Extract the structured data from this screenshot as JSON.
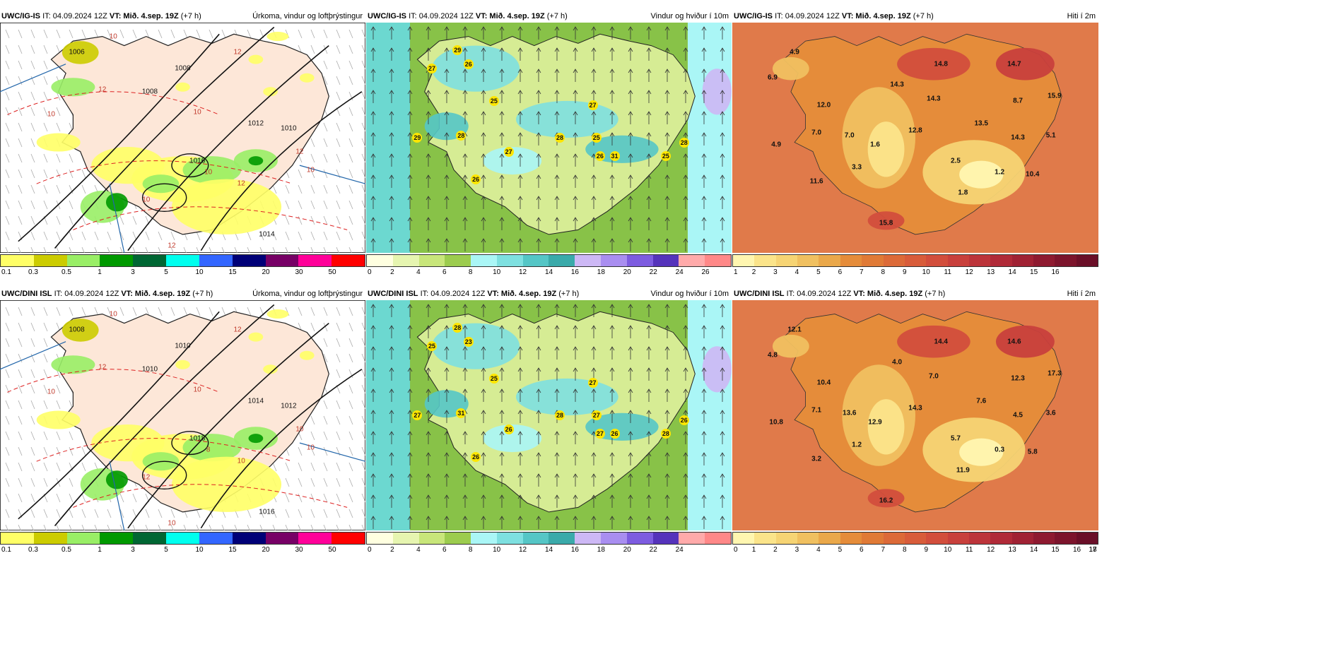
{
  "rows": [
    {
      "model": "UWC/IG-IS",
      "it": "IT: 04.09.2024 12Z",
      "vt_label": "VT:",
      "vt": "Mið. 4.sep. 19Z",
      "lead": "(+7 h)",
      "precip_title": "Úrkoma, vindur og loftþrýstingur",
      "wind_title": "Vindur og hviður í 10m",
      "temp_title": "Hiti í 2m",
      "wind_ticks": [
        "0",
        "2",
        "4",
        "6",
        "8",
        "10",
        "12",
        "14",
        "16",
        "18",
        "20",
        "22",
        "24",
        "26"
      ],
      "temp_ticks": [
        "1",
        "2",
        "3",
        "4",
        "5",
        "6",
        "7",
        "8",
        "9",
        "10",
        "11",
        "12",
        "13",
        "14",
        "15",
        "16"
      ],
      "isobars": [
        "1006",
        "1008",
        "1010",
        "1012",
        "1014",
        "1016",
        "1008"
      ],
      "isotherms": [
        "10",
        "10",
        "12",
        "10",
        "12",
        "10",
        "12",
        "10",
        "12",
        "12",
        "10"
      ],
      "wind_labels": [
        "29",
        "27",
        "26",
        "25",
        "27",
        "29",
        "28",
        "28",
        "25",
        "27",
        "26",
        "31",
        "25",
        "28",
        "26"
      ],
      "temp_labels": [
        "4.9",
        "6.9",
        "12.0",
        "7.0",
        "14.3",
        "14.8",
        "14.3",
        "14.7",
        "15.9",
        "8.7",
        "13.5",
        "12.8",
        "7.0",
        "1.6",
        "4.9",
        "3.3",
        "14.3",
        "5.1",
        "2.5",
        "1.2",
        "10.4",
        "11.6",
        "1.8",
        "15.8"
      ]
    },
    {
      "model": "UWC/DINI ISL",
      "it": "IT: 04.09.2024 12Z",
      "vt_label": "VT:",
      "vt": "Mið. 4.sep. 19Z",
      "lead": "(+7 h)",
      "precip_title": "Úrkoma, vindur og loftþrýstingur",
      "wind_title": "Vindur og hviður í 10m",
      "temp_title": "Hiti í 2m",
      "wind_ticks": [
        "0",
        "2",
        "4",
        "6",
        "8",
        "10",
        "12",
        "14",
        "16",
        "18",
        "20",
        "22",
        "24"
      ],
      "temp_ticks": [
        "0",
        "1",
        "2",
        "3",
        "4",
        "5",
        "6",
        "7",
        "8",
        "9",
        "10",
        "11",
        "12",
        "13",
        "14",
        "15",
        "16",
        "17",
        "18"
      ],
      "isobars": [
        "1008",
        "1010",
        "1012",
        "1014",
        "1016",
        "1018",
        "1010"
      ],
      "isotherms": [
        "10",
        "10",
        "12",
        "10",
        "10",
        "8",
        "10",
        "12",
        "10",
        "12",
        "10"
      ],
      "wind_labels": [
        "28",
        "25",
        "23",
        "25",
        "27",
        "27",
        "31",
        "28",
        "27",
        "26",
        "27",
        "26",
        "28",
        "26",
        "26"
      ],
      "temp_labels": [
        "12.1",
        "4.8",
        "10.4",
        "13.6",
        "4.0",
        "14.4",
        "7.0",
        "14.6",
        "17.3",
        "12.3",
        "7.6",
        "14.3",
        "7.1",
        "12.9",
        "10.8",
        "1.2",
        "4.5",
        "3.6",
        "5.7",
        "0.3",
        "5.8",
        "3.2",
        "11.9",
        "16.2"
      ]
    }
  ],
  "precip_ticks": [
    "0.1",
    "0.3",
    "0.5",
    "1",
    "3",
    "5",
    "10",
    "15",
    "20",
    "30",
    "50"
  ],
  "colors": {
    "precip": [
      "#ffff66",
      "#cccc00",
      "#99ee66",
      "#009900",
      "#006633",
      "#00ffee",
      "#3366ff",
      "#000077",
      "#770066",
      "#ff0099",
      "#ff0000"
    ],
    "wind": [
      "#ffffe0",
      "#e6f5b0",
      "#c8e67a",
      "#9ccc4e",
      "#aaf6f6",
      "#7ee0e0",
      "#55c6c6",
      "#3aaaaa",
      "#cdb8f5",
      "#a98ef0",
      "#7d5ce0",
      "#5533bb",
      "#ffaaaa",
      "#ff8888"
    ],
    "temp": [
      "#fff6b0",
      "#fbe48a",
      "#f6d474",
      "#f0c060",
      "#eaa84a",
      "#e58c3a",
      "#e07a36",
      "#dc6a38",
      "#d85c3a",
      "#d24e3c",
      "#c8403c",
      "#bc343a",
      "#b02a38",
      "#a02234",
      "#8e1a30",
      "#7c142c",
      "#6a0f28"
    ]
  }
}
